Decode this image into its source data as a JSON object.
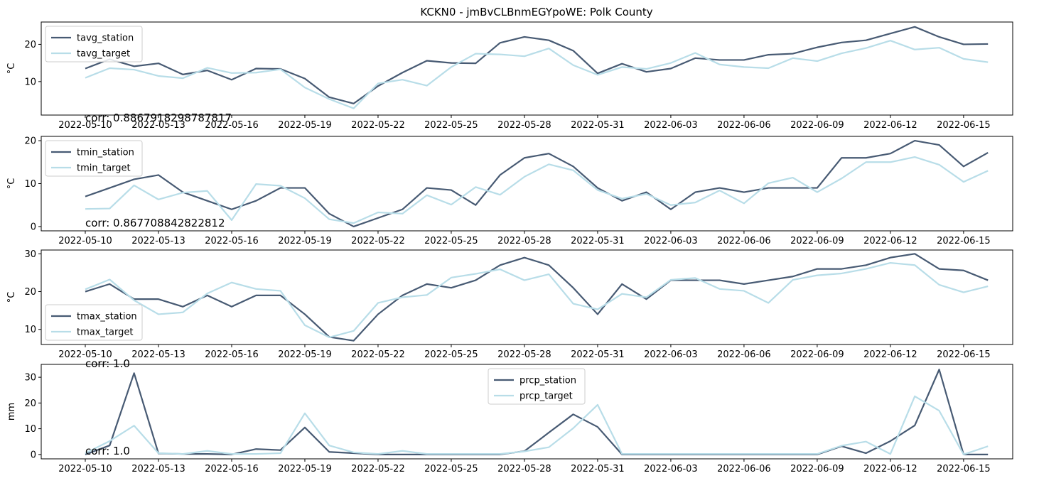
{
  "figure": {
    "title": "KCKN0 - jmBvCLBnmEGYpoWE: Polk County",
    "colors": {
      "station": "#475a73",
      "target": "#b8dde8"
    }
  },
  "chart_data": [
    {
      "type": "line",
      "title": "",
      "xlabel": "",
      "ylabel": "°C",
      "ylim": [
        1,
        26
      ],
      "yticks": [
        10,
        20
      ],
      "legend_loc": "upper-left",
      "corr_label": "corr: 0.8867918298787817",
      "x": [
        "2022-05-10",
        "2022-05-11",
        "2022-05-12",
        "2022-05-13",
        "2022-05-14",
        "2022-05-15",
        "2022-05-16",
        "2022-05-17",
        "2022-05-18",
        "2022-05-19",
        "2022-05-20",
        "2022-05-21",
        "2022-05-22",
        "2022-05-23",
        "2022-05-24",
        "2022-05-25",
        "2022-05-26",
        "2022-05-27",
        "2022-05-28",
        "2022-05-29",
        "2022-05-30",
        "2022-05-31",
        "2022-06-01",
        "2022-06-02",
        "2022-06-03",
        "2022-06-04",
        "2022-06-05",
        "2022-06-06",
        "2022-06-07",
        "2022-06-08",
        "2022-06-09",
        "2022-06-10",
        "2022-06-11",
        "2022-06-12",
        "2022-06-13",
        "2022-06-14",
        "2022-06-15",
        "2022-06-16"
      ],
      "xtick_labels": [
        "2022-05-10",
        "2022-05-13",
        "2022-05-16",
        "2022-05-19",
        "2022-05-22",
        "2022-05-25",
        "2022-05-28",
        "2022-05-31",
        "2022-06-03",
        "2022-06-06",
        "2022-06-09",
        "2022-06-12",
        "2022-06-15"
      ],
      "series": [
        {
          "name": "tavg_station",
          "role": "station",
          "values": [
            13.5,
            16.0,
            14.1,
            14.9,
            11.9,
            13.0,
            10.5,
            13.5,
            13.4,
            10.8,
            5.8,
            4.1,
            8.8,
            12.4,
            15.6,
            15.0,
            14.9,
            20.4,
            22.0,
            21.1,
            18.3,
            12.2,
            14.8,
            12.6,
            13.5,
            16.3,
            15.8,
            15.8,
            17.2,
            17.5,
            19.2,
            20.5,
            21.1,
            22.9,
            24.7,
            22.0,
            20.0,
            20.1
          ]
        },
        {
          "name": "tavg_target",
          "role": "target",
          "values": [
            11.0,
            13.6,
            13.2,
            11.5,
            10.9,
            13.7,
            12.3,
            12.4,
            13.3,
            8.4,
            5.3,
            2.8,
            9.5,
            10.5,
            8.9,
            13.9,
            17.5,
            17.3,
            16.8,
            18.9,
            14.4,
            11.8,
            13.9,
            13.4,
            15.0,
            17.7,
            14.6,
            13.9,
            13.6,
            16.3,
            15.5,
            17.6,
            19.0,
            21.0,
            18.6,
            19.1,
            16.1,
            15.2
          ]
        }
      ]
    },
    {
      "type": "line",
      "title": "",
      "xlabel": "",
      "ylabel": "°C",
      "ylim": [
        -1,
        21
      ],
      "yticks": [
        0,
        10,
        20
      ],
      "legend_loc": "upper-left",
      "corr_label": "corr: 0.867708842822812",
      "x": [
        "2022-05-10",
        "2022-05-11",
        "2022-05-12",
        "2022-05-13",
        "2022-05-14",
        "2022-05-15",
        "2022-05-16",
        "2022-05-17",
        "2022-05-18",
        "2022-05-19",
        "2022-05-20",
        "2022-05-21",
        "2022-05-22",
        "2022-05-23",
        "2022-05-24",
        "2022-05-25",
        "2022-05-26",
        "2022-05-27",
        "2022-05-28",
        "2022-05-29",
        "2022-05-30",
        "2022-05-31",
        "2022-06-01",
        "2022-06-02",
        "2022-06-03",
        "2022-06-04",
        "2022-06-05",
        "2022-06-06",
        "2022-06-07",
        "2022-06-08",
        "2022-06-09",
        "2022-06-10",
        "2022-06-11",
        "2022-06-12",
        "2022-06-13",
        "2022-06-14",
        "2022-06-15",
        "2022-06-16"
      ],
      "xtick_labels": [
        "2022-05-10",
        "2022-05-13",
        "2022-05-16",
        "2022-05-19",
        "2022-05-22",
        "2022-05-25",
        "2022-05-28",
        "2022-05-31",
        "2022-06-03",
        "2022-06-06",
        "2022-06-09",
        "2022-06-12",
        "2022-06-15"
      ],
      "series": [
        {
          "name": "tmin_station",
          "role": "station",
          "values": [
            7.0,
            9.0,
            11.0,
            12.0,
            8.0,
            6.0,
            4.0,
            6.0,
            9.0,
            9.0,
            3.0,
            0.0,
            2.0,
            4.0,
            9.0,
            8.5,
            5.0,
            12.0,
            16.0,
            17.0,
            14.0,
            9.0,
            6.0,
            8.0,
            4.0,
            8.0,
            9.0,
            8.0,
            9.0,
            9.0,
            9.0,
            16.0,
            16.0,
            17.0,
            20.0,
            19.0,
            14.0,
            17.2
          ]
        },
        {
          "name": "tmin_target",
          "role": "target",
          "values": [
            4.1,
            4.2,
            9.6,
            6.3,
            7.9,
            8.3,
            1.5,
            9.9,
            9.5,
            6.6,
            1.7,
            0.8,
            3.3,
            3.0,
            7.3,
            5.1,
            9.2,
            7.4,
            11.6,
            14.5,
            13.1,
            8.5,
            6.5,
            7.6,
            5.0,
            5.6,
            8.4,
            5.4,
            10.1,
            11.4,
            8.0,
            11.2,
            15.0,
            15.0,
            16.2,
            14.4,
            10.4,
            13.0
          ]
        }
      ]
    },
    {
      "type": "line",
      "title": "",
      "xlabel": "",
      "ylabel": "°C",
      "ylim": [
        6,
        31
      ],
      "yticks": [
        10,
        20,
        30
      ],
      "legend_loc": "lower-left",
      "corr_label": "corr: 1.0",
      "x": [
        "2022-05-10",
        "2022-05-11",
        "2022-05-12",
        "2022-05-13",
        "2022-05-14",
        "2022-05-15",
        "2022-05-16",
        "2022-05-17",
        "2022-05-18",
        "2022-05-19",
        "2022-05-20",
        "2022-05-21",
        "2022-05-22",
        "2022-05-23",
        "2022-05-24",
        "2022-05-25",
        "2022-05-26",
        "2022-05-27",
        "2022-05-28",
        "2022-05-29",
        "2022-05-30",
        "2022-05-31",
        "2022-06-01",
        "2022-06-02",
        "2022-06-03",
        "2022-06-04",
        "2022-06-05",
        "2022-06-06",
        "2022-06-07",
        "2022-06-08",
        "2022-06-09",
        "2022-06-10",
        "2022-06-11",
        "2022-06-12",
        "2022-06-13",
        "2022-06-14",
        "2022-06-15",
        "2022-06-16"
      ],
      "xtick_labels": [
        "2022-05-10",
        "2022-05-13",
        "2022-05-16",
        "2022-05-19",
        "2022-05-22",
        "2022-05-25",
        "2022-05-28",
        "2022-05-31",
        "2022-06-03",
        "2022-06-06",
        "2022-06-09",
        "2022-06-12",
        "2022-06-15"
      ],
      "series": [
        {
          "name": "tmax_station",
          "role": "station",
          "values": [
            20.0,
            22.0,
            18.0,
            18.0,
            16.0,
            19.0,
            16.0,
            19.0,
            19.0,
            14.0,
            8.0,
            7.0,
            14.0,
            19.0,
            22.0,
            21.0,
            23.0,
            27.0,
            29.0,
            27.0,
            21.0,
            14.0,
            22.0,
            18.0,
            23.0,
            23.0,
            23.0,
            22.0,
            23.0,
            24.0,
            26.0,
            26.0,
            27.0,
            29.0,
            30.0,
            26.0,
            25.6,
            23.0
          ]
        },
        {
          "name": "tmax_target",
          "role": "target",
          "values": [
            20.6,
            23.2,
            17.7,
            14.0,
            14.5,
            19.5,
            22.4,
            20.7,
            20.2,
            11.1,
            7.9,
            9.6,
            17.0,
            18.5,
            19.1,
            23.7,
            24.7,
            25.9,
            23.0,
            24.6,
            16.8,
            15.3,
            19.4,
            18.5,
            23.1,
            23.6,
            20.7,
            20.2,
            17.0,
            23.1,
            24.3,
            24.8,
            26.0,
            27.6,
            27.0,
            21.8,
            19.8,
            21.4
          ]
        }
      ]
    },
    {
      "type": "line",
      "title": "",
      "xlabel": "",
      "ylabel": "mm",
      "ylim": [
        -1.7,
        35
      ],
      "yticks": [
        0,
        10,
        20,
        30
      ],
      "legend_loc": "upper-center",
      "corr_label": "corr: 1.0",
      "x": [
        "2022-05-10",
        "2022-05-11",
        "2022-05-12",
        "2022-05-13",
        "2022-05-14",
        "2022-05-15",
        "2022-05-16",
        "2022-05-17",
        "2022-05-18",
        "2022-05-19",
        "2022-05-20",
        "2022-05-21",
        "2022-05-22",
        "2022-05-23",
        "2022-05-24",
        "2022-05-25",
        "2022-05-26",
        "2022-05-27",
        "2022-05-28",
        "2022-05-29",
        "2022-05-30",
        "2022-05-31",
        "2022-06-01",
        "2022-06-02",
        "2022-06-03",
        "2022-06-04",
        "2022-06-05",
        "2022-06-06",
        "2022-06-07",
        "2022-06-08",
        "2022-06-09",
        "2022-06-10",
        "2022-06-11",
        "2022-06-12",
        "2022-06-13",
        "2022-06-14",
        "2022-06-15",
        "2022-06-16"
      ],
      "xtick_labels": [
        "2022-05-10",
        "2022-05-13",
        "2022-05-16",
        "2022-05-19",
        "2022-05-22",
        "2022-05-25",
        "2022-05-28",
        "2022-05-31",
        "2022-06-03",
        "2022-06-06",
        "2022-06-09",
        "2022-06-12",
        "2022-06-15"
      ],
      "series": [
        {
          "name": "prcp_station",
          "role": "station",
          "values": [
            0.0,
            3.5,
            31.6,
            0.4,
            0.2,
            0.2,
            0.0,
            2.1,
            1.7,
            10.5,
            1.0,
            0.5,
            0.0,
            0.0,
            0.0,
            0.0,
            0.0,
            0.0,
            1.3,
            8.5,
            15.6,
            10.7,
            0.0,
            0.0,
            0.0,
            0.0,
            0.0,
            0.0,
            0.0,
            0.0,
            0.0,
            3.2,
            0.5,
            5.2,
            11.3,
            33.0,
            0.0,
            0.0
          ]
        },
        {
          "name": "prcp_target",
          "role": "target",
          "values": [
            0.5,
            5.2,
            11.2,
            0.5,
            0.2,
            1.4,
            0.2,
            0.2,
            0.5,
            16.0,
            3.5,
            0.8,
            0.2,
            1.4,
            0.2,
            0.2,
            0.2,
            0.2,
            1.2,
            2.8,
            10.2,
            19.3,
            0.2,
            0.2,
            0.2,
            0.2,
            0.2,
            0.2,
            0.2,
            0.2,
            0.2,
            3.4,
            5.0,
            0.2,
            22.6,
            17.0,
            0.0,
            3.2
          ]
        }
      ]
    }
  ]
}
